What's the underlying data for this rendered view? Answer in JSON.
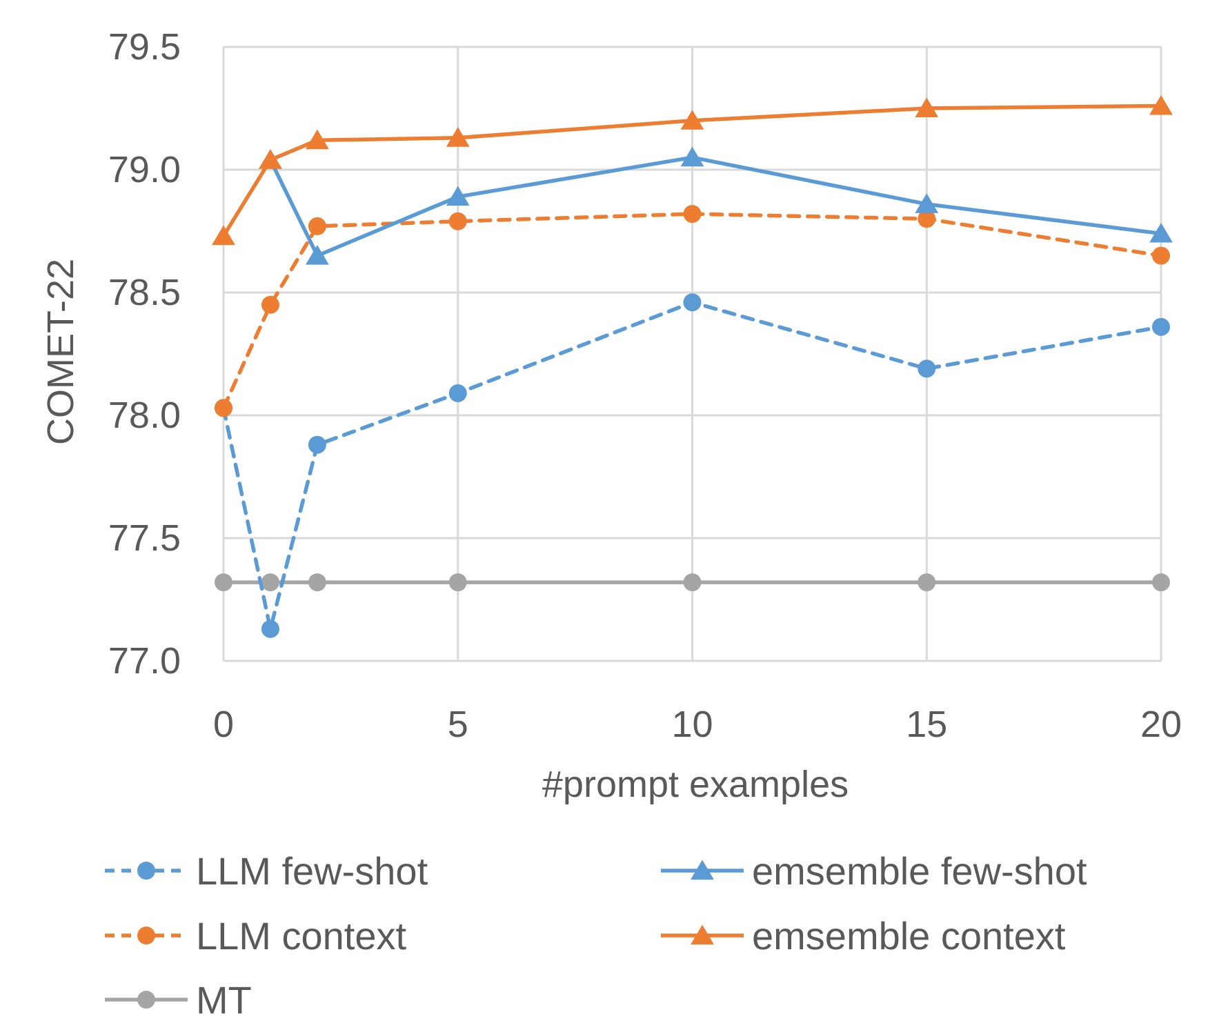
{
  "chart_data": {
    "type": "line",
    "title": "",
    "xlabel": "#prompt examples",
    "ylabel": "COMET-22",
    "xlim": [
      0,
      20
    ],
    "ylim": [
      77.0,
      79.5
    ],
    "x_ticks": [
      "0",
      "5",
      "10",
      "15",
      "20"
    ],
    "y_ticks": [
      "77.0",
      "77.5",
      "78.0",
      "78.5",
      "79.0",
      "79.5"
    ],
    "grid": true,
    "legend_position": "bottom",
    "series": [
      {
        "name": "LLM few-shot",
        "color": "#5B9BD5",
        "dash": true,
        "marker": "circle",
        "x": [
          0,
          1,
          2,
          5,
          10,
          15,
          20
        ],
        "y": [
          78.03,
          77.13,
          77.88,
          78.09,
          78.46,
          78.19,
          78.36
        ]
      },
      {
        "name": "emsemble few-shot",
        "color": "#5B9BD5",
        "dash": false,
        "marker": "triangle",
        "x": [
          1,
          2,
          5,
          10,
          15,
          20
        ],
        "y": [
          79.04,
          78.65,
          78.89,
          79.05,
          78.86,
          78.74
        ]
      },
      {
        "name": "LLM context",
        "color": "#ED7D31",
        "dash": true,
        "marker": "circle",
        "x": [
          0,
          1,
          2,
          5,
          10,
          15,
          20
        ],
        "y": [
          78.03,
          78.45,
          78.77,
          78.79,
          78.82,
          78.8,
          78.65
        ]
      },
      {
        "name": "emsemble context",
        "color": "#ED7D31",
        "dash": false,
        "marker": "triangle",
        "x": [
          0,
          1,
          2,
          5,
          10,
          15,
          20
        ],
        "y": [
          78.73,
          79.04,
          79.12,
          79.13,
          79.2,
          79.25,
          79.26
        ]
      },
      {
        "name": "MT",
        "color": "#A5A5A5",
        "dash": false,
        "marker": "circle",
        "x": [
          0,
          1,
          2,
          5,
          10,
          15,
          20
        ],
        "y": [
          77.32,
          77.32,
          77.32,
          77.32,
          77.32,
          77.32,
          77.32
        ]
      }
    ]
  }
}
